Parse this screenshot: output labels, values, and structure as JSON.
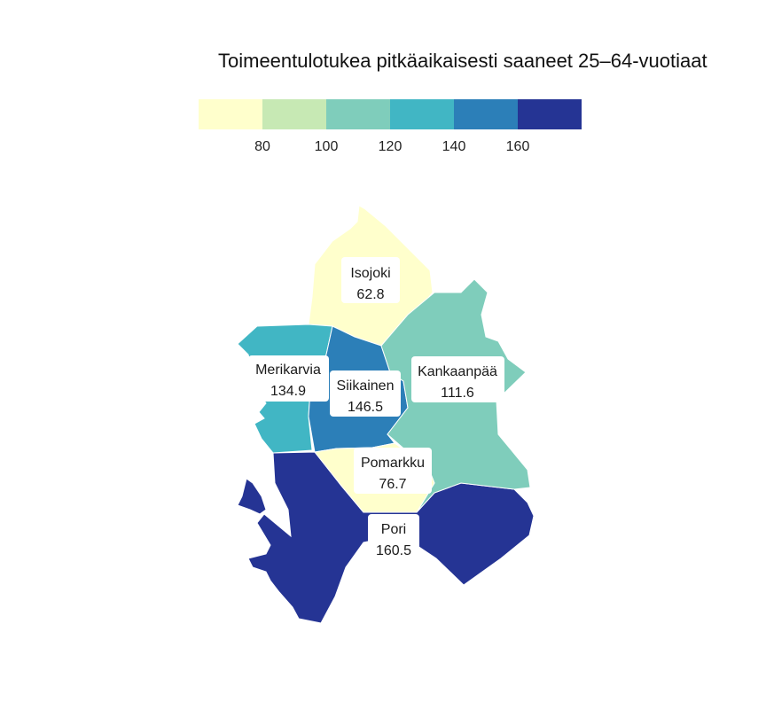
{
  "title": "Toimeentulotukea pitkäaikaisesti saaneet 25–64-vuotiaat",
  "legend": {
    "colors": [
      "#ffffcc",
      "#c7e9b4",
      "#7fcdbb",
      "#41b6c4",
      "#2c7fb8",
      "#253494"
    ],
    "breaks": [
      "80",
      "100",
      "120",
      "140",
      "160"
    ]
  },
  "regions": [
    {
      "name": "Isojoki",
      "value": "62.8",
      "color": "#ffffcc"
    },
    {
      "name": "Merikarvia",
      "value": "134.9",
      "color": "#41b6c4"
    },
    {
      "name": "Siikainen",
      "value": "146.5",
      "color": "#2c7fb8"
    },
    {
      "name": "Kankaanpää",
      "value": "111.6",
      "color": "#7fcdbb"
    },
    {
      "name": "Pomarkku",
      "value": "76.7",
      "color": "#ffffcc"
    },
    {
      "name": "Pori",
      "value": "160.5",
      "color": "#253494"
    }
  ]
}
